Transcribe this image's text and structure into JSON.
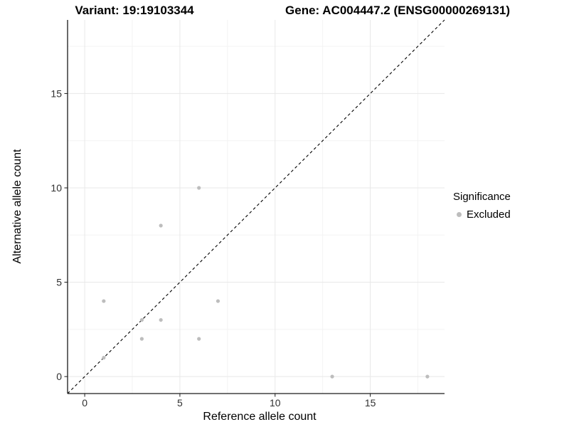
{
  "header": {
    "variant_title": "Variant: 19:19103344",
    "gene_title": "Gene: AC004447.2 (ENSG00000269131)"
  },
  "chart_data": {
    "type": "scatter",
    "xlabel": "Reference allele count",
    "ylabel": "Alternative allele count",
    "xlim": [
      0,
      18
    ],
    "ylim": [
      0,
      18
    ],
    "expansion": 0.05,
    "x_breaks": [
      0,
      5,
      10,
      15
    ],
    "y_breaks": [
      0,
      5,
      10,
      15
    ],
    "x_minor_breaks": [
      2.5,
      7.5,
      12.5,
      17.5
    ],
    "y_minor_breaks": [
      2.5,
      7.5,
      12.5,
      17.5
    ],
    "grid": true,
    "legend_position": "right",
    "reference_line": {
      "kind": "identity",
      "slope": 1,
      "intercept": 0,
      "style": "dashed",
      "color": "#000000"
    },
    "series": [
      {
        "name": "Excluded",
        "color": "#bdbdbd",
        "points": [
          [
            1,
            1
          ],
          [
            1,
            4
          ],
          [
            3,
            2
          ],
          [
            3,
            3
          ],
          [
            4,
            3
          ],
          [
            4,
            8
          ],
          [
            6,
            2
          ],
          [
            6,
            10
          ],
          [
            7,
            4
          ],
          [
            13,
            0
          ],
          [
            18,
            0
          ]
        ]
      }
    ]
  },
  "legend": {
    "title": "Significance",
    "items": [
      {
        "label": "Excluded",
        "color": "#bdbdbd"
      }
    ]
  },
  "colors": {
    "background": "#ffffff",
    "grid_major": "#e8e8e8",
    "grid_minor": "#f3f3f3",
    "axis_line": "#1a1a1a",
    "tick_text": "#303030",
    "point": "#bdbdbd",
    "reference_line": "#000000"
  }
}
